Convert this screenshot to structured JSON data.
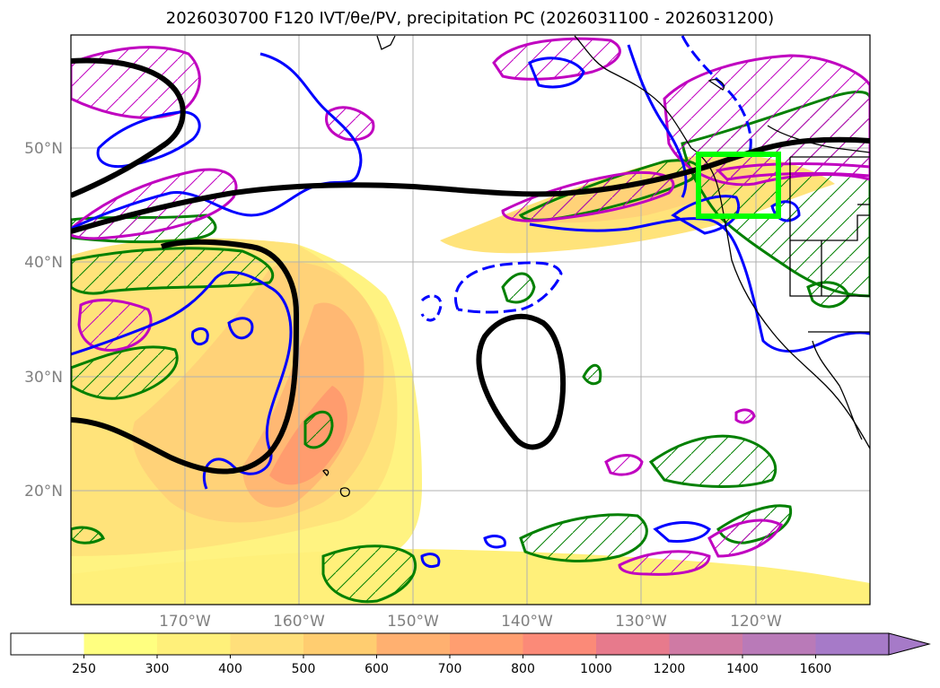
{
  "title": "2026030700 F120 IVT/θe/PV, precipitation PC (2026031100 - 2026031200)",
  "lat_labels": [
    "50°N",
    "40°N",
    "30°N",
    "20°N"
  ],
  "lon_labels": [
    "170°W",
    "160°W",
    "150°W",
    "140°W",
    "130°W",
    "120°W"
  ],
  "colorbar": {
    "ticks": [
      "250",
      "300",
      "400",
      "500",
      "600",
      "700",
      "800",
      "1000",
      "1200",
      "1400",
      "1600"
    ],
    "colors": [
      "#ffffff",
      "#ffff80",
      "#fff07a",
      "#ffdf7a",
      "#ffcd70",
      "#ffb070",
      "#ff9e70",
      "#fb8a78",
      "#e77a8c",
      "#cf7aa4",
      "#b97ab8",
      "#a67ac8"
    ]
  },
  "colors": {
    "ivt_fill": "#ffe870",
    "ivt_core": "#ff9c6e",
    "jet_contour": "#000000",
    "theta_e_contour": "#0000ff",
    "precip_contour": "#008000",
    "pv_contour": "#c000c0",
    "target_box": "#00ff00",
    "coastline": "#000000",
    "grid": "#b0b0b0"
  }
}
